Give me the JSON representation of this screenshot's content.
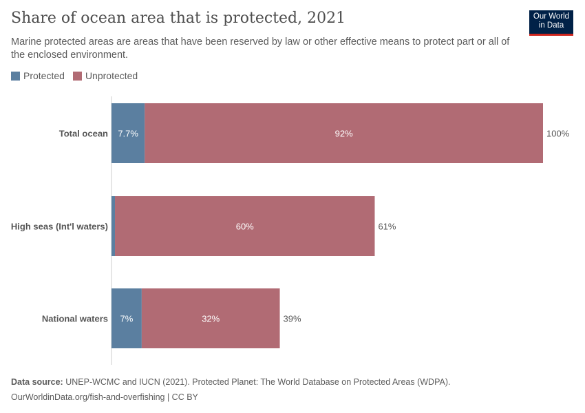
{
  "header": {
    "title": "Share of ocean area that is protected, 2021",
    "subtitle": "Marine protected areas are areas that have been reserved by law or other effective means to protect part or all of the enclosed environment.",
    "logo": "Our World in Data"
  },
  "legend": [
    {
      "label": "Protected",
      "color": "#5b7fa0"
    },
    {
      "label": "Unprotected",
      "color": "#b16b74"
    }
  ],
  "chart_data": {
    "type": "bar",
    "orientation": "horizontal",
    "stacked": true,
    "categories": [
      "Total ocean",
      "High seas (Int'l waters)",
      "National waters"
    ],
    "series": [
      {
        "name": "Protected",
        "color": "#5b7fa0",
        "values": [
          7.7,
          0.8,
          7
        ],
        "labels": [
          "7.7%",
          "",
          "7%"
        ]
      },
      {
        "name": "Unprotected",
        "color": "#b16b74",
        "values": [
          92.3,
          60.2,
          32
        ],
        "labels": [
          "92%",
          "60%",
          "32%"
        ]
      }
    ],
    "totals": [
      "100%",
      "61%",
      "39%"
    ],
    "xlim": [
      0,
      100
    ],
    "unit": "%",
    "legend": "top-left"
  },
  "footer": {
    "source_label": "Data source:",
    "source": "UNEP-WCMC and IUCN (2021). Protected Planet: The World Database on Protected Areas (WDPA).",
    "url": "OurWorldinData.org/fish-and-overfishing | CC BY"
  }
}
